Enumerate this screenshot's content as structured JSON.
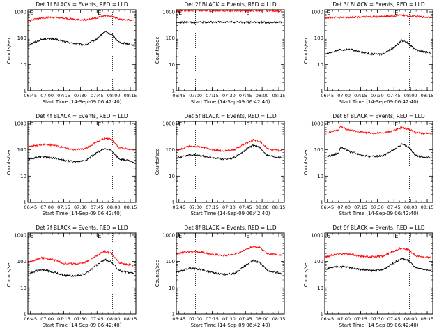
{
  "ylabel": "Counts/sec",
  "xlabel": "Start Time (14-Sep-09 06:42:40)",
  "y_ticks": [
    "1",
    "10",
    "100",
    "1000"
  ],
  "x_ticks": [
    "06:45",
    "07:00",
    "07:15",
    "07:30",
    "07:45",
    "08:00",
    "08:15"
  ],
  "colors": {
    "events": "#000000",
    "lld": "#ff0000"
  },
  "chart_data": [
    {
      "type": "line",
      "title": "Det 1f BLACK = Events, RED = LLD",
      "yscale": "log",
      "ylim": [
        1,
        1200
      ],
      "xlim": [
        "06:42:40",
        "08:20:00"
      ],
      "marker_E": [
        "06:44",
        "07:45"
      ],
      "dotted_x": [
        "07:00",
        "07:59"
      ],
      "series": [
        {
          "name": "Events",
          "x": [
            "06:43",
            "06:55",
            "07:05",
            "07:15",
            "07:25",
            "07:35",
            "07:45",
            "07:52",
            "07:58",
            "08:05",
            "08:18"
          ],
          "values": [
            55,
            90,
            95,
            75,
            62,
            55,
            95,
            180,
            140,
            70,
            55
          ]
        },
        {
          "name": "LLD",
          "x": [
            "06:43",
            "06:55",
            "07:05",
            "07:15",
            "07:25",
            "07:35",
            "07:45",
            "07:52",
            "07:58",
            "08:05",
            "08:18"
          ],
          "values": [
            450,
            600,
            620,
            560,
            520,
            500,
            600,
            720,
            700,
            520,
            480
          ]
        }
      ]
    },
    {
      "type": "line",
      "title": "Det 2f BLACK = Events, RED = LLD",
      "yscale": "log",
      "ylim": [
        1,
        1200
      ],
      "xlim": [
        "06:42:40",
        "08:20:00"
      ],
      "marker_E": [
        "06:44",
        "07:45"
      ],
      "dotted_x": [
        "07:00",
        "07:59"
      ],
      "series": [
        {
          "name": "Events",
          "x": [
            "06:43",
            "07:00",
            "07:15",
            "07:30",
            "07:45",
            "08:00",
            "08:18"
          ],
          "values": [
            400,
            400,
            410,
            410,
            400,
            400,
            395
          ]
        },
        {
          "name": "LLD",
          "x": [
            "06:43",
            "07:00",
            "07:15",
            "07:30",
            "07:45",
            "08:00",
            "08:18"
          ],
          "values": [
            1100,
            1120,
            1110,
            1120,
            1100,
            1110,
            1100
          ]
        }
      ]
    },
    {
      "type": "line",
      "title": "Det 3f BLACK = Events, RED = LLD",
      "yscale": "log",
      "ylim": [
        1,
        1200
      ],
      "xlim": [
        "06:42:40",
        "08:20:00"
      ],
      "marker_E": [
        "06:44",
        "07:45"
      ],
      "dotted_x": [
        "07:00",
        "07:59"
      ],
      "series": [
        {
          "name": "Events",
          "x": [
            "06:43",
            "06:55",
            "07:05",
            "07:15",
            "07:25",
            "07:35",
            "07:45",
            "07:52",
            "07:58",
            "08:05",
            "08:18"
          ],
          "values": [
            25,
            35,
            38,
            30,
            25,
            24,
            45,
            80,
            65,
            35,
            28
          ]
        },
        {
          "name": "LLD",
          "x": [
            "06:43",
            "07:00",
            "07:15",
            "07:30",
            "07:45",
            "07:52",
            "08:00",
            "08:18"
          ],
          "values": [
            600,
            620,
            640,
            650,
            700,
            750,
            680,
            620
          ]
        }
      ]
    },
    {
      "type": "line",
      "title": "Det 4f BLACK = Events, RED = LLD",
      "yscale": "log",
      "ylim": [
        1,
        1200
      ],
      "xlim": [
        "06:42:40",
        "08:20:00"
      ],
      "marker_E": [
        "06:44",
        "07:45"
      ],
      "dotted_x": [
        "07:00",
        "07:59"
      ],
      "series": [
        {
          "name": "Events",
          "x": [
            "06:43",
            "06:55",
            "07:05",
            "07:15",
            "07:25",
            "07:35",
            "07:45",
            "07:52",
            "07:58",
            "08:05",
            "08:18"
          ],
          "values": [
            45,
            55,
            50,
            40,
            35,
            40,
            80,
            110,
            95,
            45,
            35
          ]
        },
        {
          "name": "LLD",
          "x": [
            "06:43",
            "06:55",
            "07:05",
            "07:15",
            "07:25",
            "07:35",
            "07:45",
            "07:52",
            "07:58",
            "08:05",
            "08:18"
          ],
          "values": [
            130,
            160,
            150,
            120,
            100,
            110,
            200,
            280,
            250,
            120,
            100
          ]
        }
      ]
    },
    {
      "type": "line",
      "title": "Det 5f BLACK = Events, RED = LLD",
      "yscale": "log",
      "ylim": [
        1,
        1200
      ],
      "xlim": [
        "06:42:40",
        "08:20:00"
      ],
      "marker_E": [
        "06:44",
        "07:45"
      ],
      "dotted_x": [
        "07:00",
        "07:59"
      ],
      "series": [
        {
          "name": "Events",
          "x": [
            "06:43",
            "06:55",
            "07:05",
            "07:15",
            "07:25",
            "07:35",
            "07:45",
            "07:52",
            "07:58",
            "08:05",
            "08:18"
          ],
          "values": [
            50,
            65,
            60,
            50,
            45,
            50,
            100,
            150,
            120,
            60,
            50
          ]
        },
        {
          "name": "LLD",
          "x": [
            "06:43",
            "06:55",
            "07:05",
            "07:15",
            "07:25",
            "07:35",
            "07:45",
            "07:52",
            "07:58",
            "08:05",
            "08:18"
          ],
          "values": [
            90,
            140,
            130,
            100,
            90,
            100,
            170,
            240,
            210,
            110,
            90
          ]
        }
      ]
    },
    {
      "type": "line",
      "title": "Det 6f BLACK = Events, RED = LLD",
      "yscale": "log",
      "ylim": [
        1,
        1200
      ],
      "xlim": [
        "06:42:40",
        "08:20:00"
      ],
      "marker_E": [
        "06:44",
        "07:45"
      ],
      "dotted_x": [
        "07:00",
        "07:59"
      ],
      "series": [
        {
          "name": "Events",
          "x": [
            "06:45",
            "06:55",
            "06:57",
            "07:05",
            "07:15",
            "07:25",
            "07:35",
            "07:45",
            "07:52",
            "07:58",
            "08:05",
            "08:18"
          ],
          "values": [
            55,
            75,
            130,
            85,
            65,
            55,
            60,
            100,
            160,
            130,
            60,
            50
          ]
        },
        {
          "name": "LLD",
          "x": [
            "06:45",
            "06:55",
            "06:57",
            "07:05",
            "07:15",
            "07:25",
            "07:35",
            "07:45",
            "07:52",
            "07:58",
            "08:05",
            "08:18"
          ],
          "values": [
            450,
            560,
            750,
            560,
            480,
            430,
            430,
            550,
            700,
            620,
            450,
            400
          ]
        }
      ]
    },
    {
      "type": "line",
      "title": "Det 7f BLACK = Events, RED = LLD",
      "yscale": "log",
      "ylim": [
        1,
        1200
      ],
      "xlim": [
        "06:42:40",
        "08:20:00"
      ],
      "marker_E": [
        "06:44",
        "07:45"
      ],
      "dotted_x": [
        "07:00",
        "07:59"
      ],
      "series": [
        {
          "name": "Events",
          "x": [
            "06:43",
            "06:55",
            "07:05",
            "07:15",
            "07:25",
            "07:35",
            "07:45",
            "07:52",
            "07:58",
            "08:05",
            "08:18"
          ],
          "values": [
            35,
            50,
            40,
            30,
            28,
            35,
            75,
            120,
            95,
            45,
            35
          ]
        },
        {
          "name": "LLD",
          "x": [
            "06:43",
            "06:55",
            "07:05",
            "07:15",
            "07:25",
            "07:35",
            "07:45",
            "07:52",
            "07:58",
            "08:05",
            "08:18"
          ],
          "values": [
            90,
            140,
            120,
            85,
            80,
            95,
            170,
            250,
            200,
            90,
            70
          ]
        }
      ]
    },
    {
      "type": "line",
      "title": "Det 8f BLACK = Events, RED = LLD",
      "yscale": "log",
      "ylim": [
        1,
        1200
      ],
      "xlim": [
        "06:42:40",
        "08:20:00"
      ],
      "marker_E": [
        "06:44",
        "07:45"
      ],
      "dotted_x": [
        "07:00",
        "07:59"
      ],
      "series": [
        {
          "name": "Events",
          "x": [
            "06:43",
            "06:55",
            "07:05",
            "07:15",
            "07:25",
            "07:35",
            "07:45",
            "07:52",
            "07:58",
            "08:05",
            "08:18"
          ],
          "values": [
            40,
            55,
            50,
            38,
            32,
            35,
            70,
            110,
            90,
            45,
            35
          ]
        },
        {
          "name": "LLD",
          "x": [
            "06:43",
            "06:55",
            "07:05",
            "07:15",
            "07:25",
            "07:35",
            "07:45",
            "07:52",
            "07:58",
            "08:05",
            "08:18"
          ],
          "values": [
            200,
            240,
            230,
            190,
            170,
            180,
            280,
            380,
            330,
            200,
            170
          ]
        }
      ]
    },
    {
      "type": "line",
      "title": "Det 9f BLACK = Events, RED = LLD",
      "yscale": "log",
      "ylim": [
        1,
        1200
      ],
      "xlim": [
        "06:42:40",
        "08:20:00"
      ],
      "marker_E": [
        "06:44",
        "07:45"
      ],
      "dotted_x": [
        "07:00",
        "07:59"
      ],
      "series": [
        {
          "name": "Events",
          "x": [
            "06:43",
            "06:55",
            "07:05",
            "07:15",
            "07:25",
            "07:35",
            "07:45",
            "07:52",
            "07:58",
            "08:05",
            "08:18"
          ],
          "values": [
            50,
            65,
            60,
            50,
            45,
            48,
            90,
            130,
            110,
            55,
            45
          ]
        },
        {
          "name": "LLD",
          "x": [
            "06:43",
            "06:55",
            "07:05",
            "07:15",
            "07:25",
            "07:35",
            "07:45",
            "07:52",
            "07:58",
            "08:05",
            "08:18"
          ],
          "values": [
            150,
            200,
            190,
            160,
            150,
            160,
            250,
            330,
            280,
            160,
            140
          ]
        }
      ]
    }
  ]
}
